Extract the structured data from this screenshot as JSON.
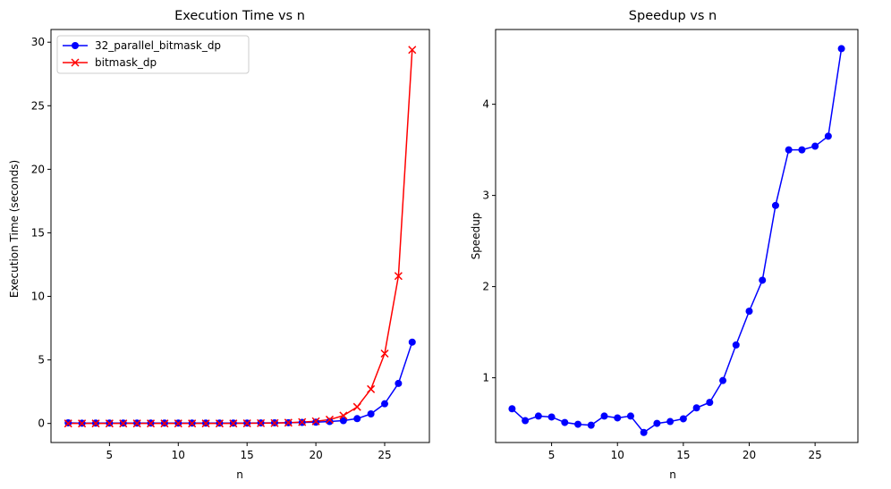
{
  "chart_data": [
    {
      "type": "line",
      "title": "Execution Time vs n",
      "xlabel": "n",
      "ylabel": "Execution Time (seconds)",
      "xlim": [
        0.75,
        28.25
      ],
      "ylim": [
        -1.5,
        31.0
      ],
      "xticks": [
        5,
        10,
        15,
        20,
        25
      ],
      "yticks": [
        0,
        5,
        10,
        15,
        20,
        25,
        30
      ],
      "legend_position": "upper-left",
      "x": [
        2,
        3,
        4,
        5,
        6,
        7,
        8,
        9,
        10,
        11,
        12,
        13,
        14,
        15,
        16,
        17,
        18,
        19,
        20,
        21,
        22,
        23,
        24,
        25,
        26,
        27
      ],
      "series": [
        {
          "name": "32_parallel_bitmask_dp",
          "color": "#0000ff",
          "marker": "circle",
          "values": [
            0.05,
            0.02,
            0.03,
            0.03,
            0.03,
            0.03,
            0.03,
            0.03,
            0.03,
            0.03,
            0.03,
            0.03,
            0.03,
            0.03,
            0.04,
            0.05,
            0.06,
            0.08,
            0.1,
            0.15,
            0.22,
            0.38,
            0.75,
            1.55,
            3.15,
            6.4
          ]
        },
        {
          "name": "bitmask_dp",
          "color": "#ff0000",
          "marker": "x",
          "values": [
            0.0,
            0.0,
            0.0,
            0.0,
            0.0,
            0.0,
            0.0,
            0.0,
            0.0,
            0.0,
            0.0,
            0.0,
            0.0,
            0.01,
            0.02,
            0.03,
            0.06,
            0.11,
            0.17,
            0.3,
            0.62,
            1.3,
            2.7,
            5.5,
            11.6,
            29.4
          ]
        }
      ]
    },
    {
      "type": "line",
      "title": "Speedup vs n",
      "xlabel": "n",
      "ylabel": "Speedup",
      "xlim": [
        0.75,
        28.25
      ],
      "ylim": [
        0.29,
        4.82
      ],
      "xticks": [
        5,
        10,
        15,
        20,
        25
      ],
      "yticks": [
        1,
        2,
        3,
        4
      ],
      "x": [
        2,
        3,
        4,
        5,
        6,
        7,
        8,
        9,
        10,
        11,
        12,
        13,
        14,
        15,
        16,
        17,
        18,
        19,
        20,
        21,
        22,
        23,
        24,
        25,
        26,
        27
      ],
      "series": [
        {
          "name": "speedup",
          "color": "#0000ff",
          "marker": "circle",
          "values": [
            0.66,
            0.53,
            0.58,
            0.57,
            0.51,
            0.49,
            0.48,
            0.58,
            0.56,
            0.58,
            0.4,
            0.5,
            0.52,
            0.55,
            0.67,
            0.73,
            0.97,
            1.36,
            1.73,
            2.07,
            2.89,
            3.5,
            3.5,
            3.54,
            3.65,
            4.61
          ]
        }
      ]
    }
  ]
}
